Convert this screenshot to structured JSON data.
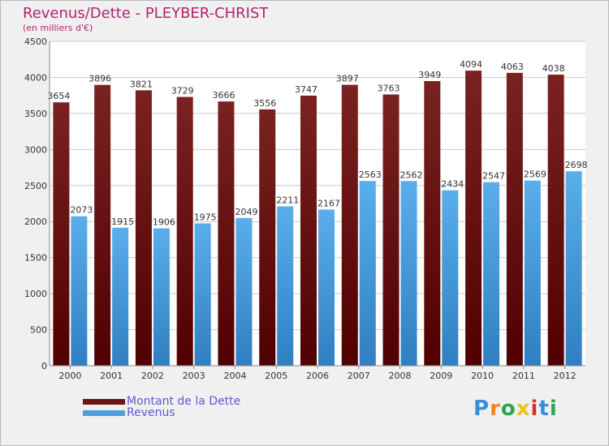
{
  "title": "Revenus/Dette - PLEYBER-CHRIST",
  "subtitle": "(en milliers d'€)",
  "colors": {
    "dette": "#6b1515",
    "revenus": "#4f9fde",
    "title": "#b0246a",
    "legend_text": "#5b5bd6"
  },
  "legend": [
    {
      "name": "Montant de la Dette",
      "color": "#6b1515"
    },
    {
      "name": "Revenus",
      "color": "#4f9fde"
    }
  ],
  "logo": {
    "text": "Proxiti",
    "letters": [
      "P",
      "r",
      "o",
      "x",
      "i",
      "t",
      "i"
    ]
  },
  "chart_data": {
    "type": "bar",
    "categories": [
      "2000",
      "2001",
      "2002",
      "2003",
      "2004",
      "2005",
      "2006",
      "2007",
      "2008",
      "2009",
      "2010",
      "2011",
      "2012"
    ],
    "series": [
      {
        "name": "Montant de la Dette",
        "values": [
          3654,
          3896,
          3821,
          3729,
          3666,
          3556,
          3747,
          3897,
          3763,
          3949,
          4094,
          4063,
          4038
        ]
      },
      {
        "name": "Revenus",
        "values": [
          2073,
          1915,
          1906,
          1975,
          2049,
          2211,
          2167,
          2563,
          2562,
          2434,
          2547,
          2569,
          2698
        ]
      }
    ],
    "ylim": [
      0,
      4500
    ],
    "yticks": [
      0,
      500,
      1000,
      1500,
      2000,
      2500,
      3000,
      3500,
      4000,
      4500
    ],
    "grid": true,
    "legend_position": "bottom-left"
  }
}
